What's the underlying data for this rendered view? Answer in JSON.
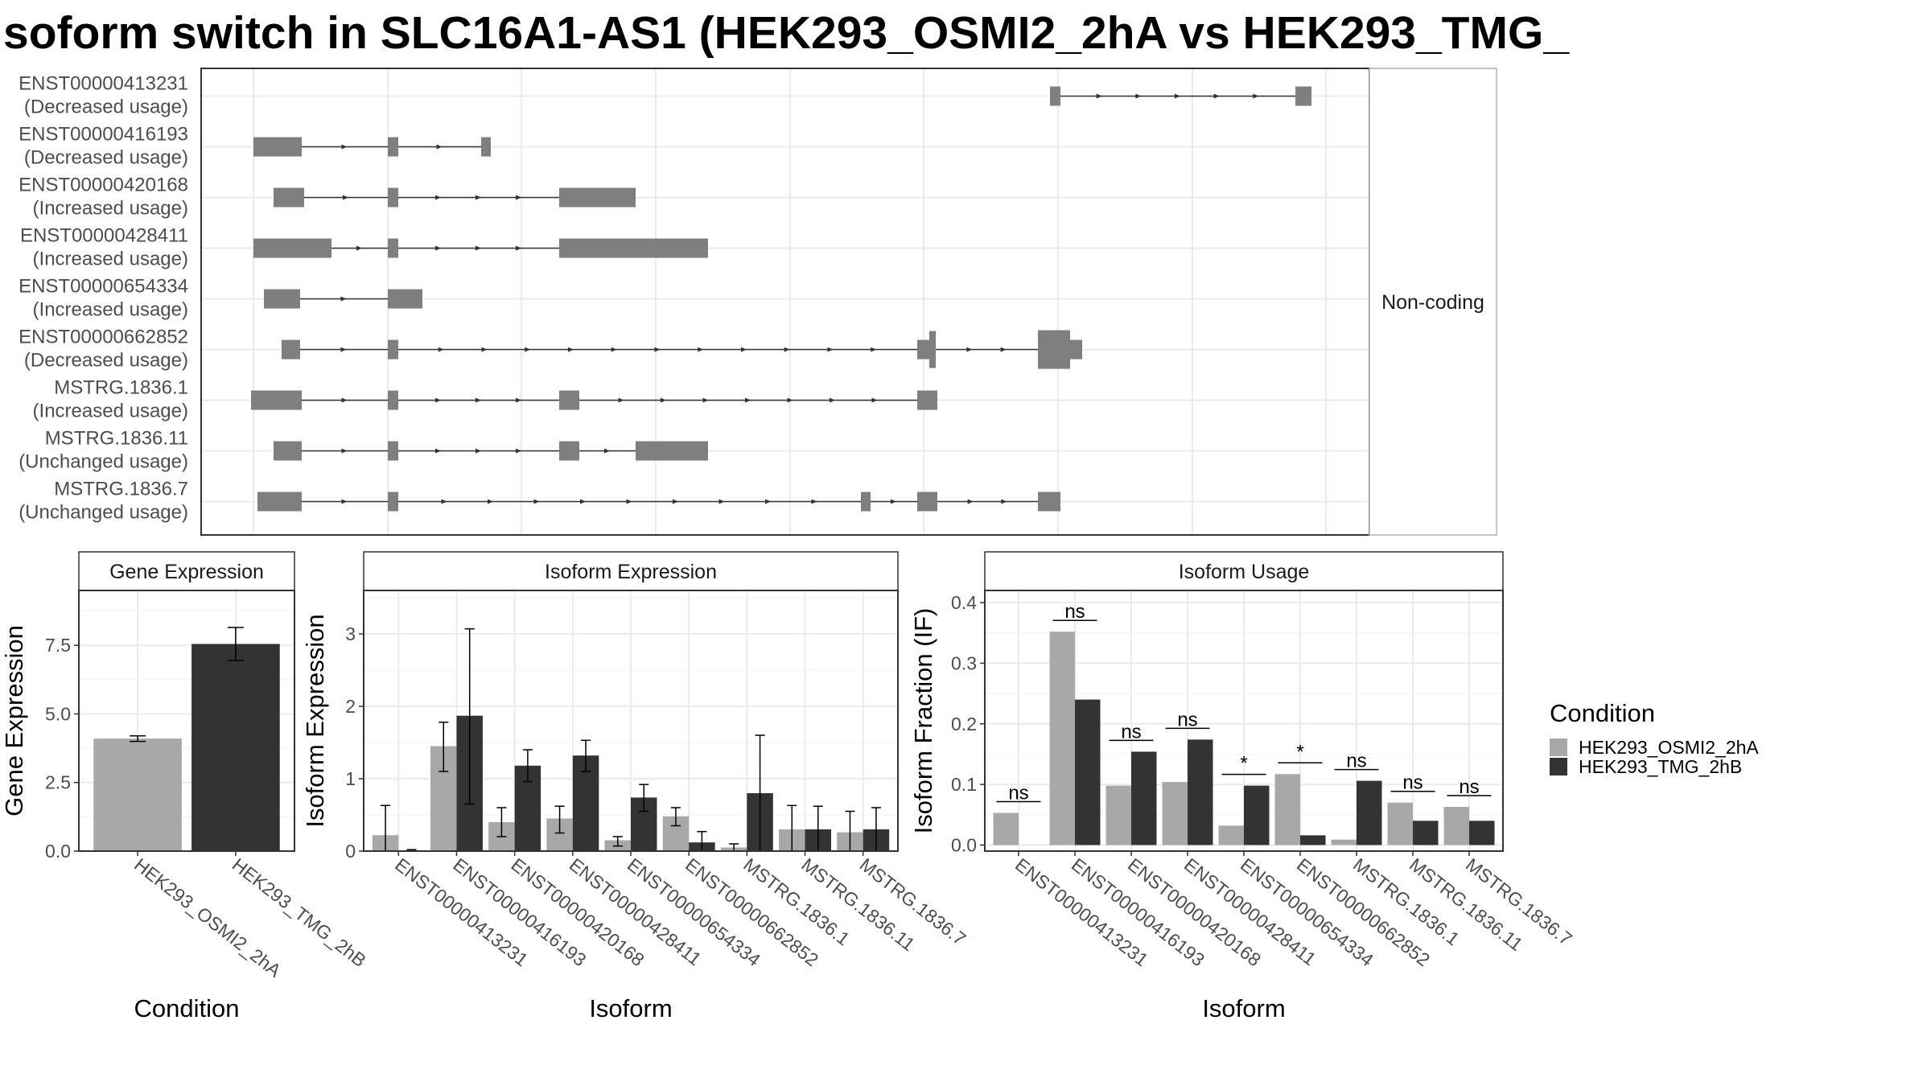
{
  "title": "soform switch in SLC16A1-AS1 (HEK293_OSMI2_2hA vs HEK293_TMG_",
  "colors": {
    "osmi": "#a8a8a8",
    "tmg": "#333333",
    "exon": "#7f7f7f"
  },
  "structure": {
    "facet_label": "Non-coding",
    "transcripts": [
      {
        "id": "ENST00000413231",
        "usage": "(Decreased usage)",
        "exons": [
          [
            1305,
            1318
          ],
          [
            1610,
            1630
          ]
        ]
      },
      {
        "id": "ENST00000416193",
        "usage": "(Decreased usage)",
        "exons": [
          [
            315,
            375
          ],
          [
            482,
            495
          ],
          [
            598,
            610
          ]
        ]
      },
      {
        "id": "ENST00000420168",
        "usage": "(Increased usage)",
        "exons": [
          [
            340,
            378
          ],
          [
            482,
            495
          ],
          [
            695,
            790
          ]
        ]
      },
      {
        "id": "ENST00000428411",
        "usage": "(Increased usage)",
        "exons": [
          [
            315,
            412
          ],
          [
            482,
            495
          ],
          [
            695,
            880
          ]
        ]
      },
      {
        "id": "ENST00000654334",
        "usage": "(Increased usage)",
        "exons": [
          [
            328,
            373
          ],
          [
            482,
            525
          ]
        ]
      },
      {
        "id": "ENST00000662852",
        "usage": "(Decreased usage)",
        "exons": [
          [
            350,
            373
          ],
          [
            482,
            495
          ],
          [
            1140,
            1155
          ],
          [
            1155,
            1163
          ],
          [
            1290,
            1330
          ],
          [
            1330,
            1345
          ]
        ]
      },
      {
        "id": "MSTRG.1836.1",
        "usage": "(Increased usage)",
        "exons": [
          [
            312,
            375
          ],
          [
            482,
            495
          ],
          [
            695,
            720
          ],
          [
            1140,
            1165
          ]
        ]
      },
      {
        "id": "MSTRG.1836.11",
        "usage": "(Unchanged usage)",
        "exons": [
          [
            340,
            375
          ],
          [
            482,
            495
          ],
          [
            695,
            720
          ],
          [
            790,
            880
          ]
        ]
      },
      {
        "id": "MSTRG.1836.7",
        "usage": "(Unchanged usage)",
        "exons": [
          [
            320,
            375
          ],
          [
            482,
            495
          ],
          [
            1070,
            1082
          ],
          [
            1140,
            1165
          ],
          [
            1290,
            1318
          ]
        ]
      }
    ]
  },
  "legend": {
    "title": "Condition",
    "items": [
      "HEK293_OSMI2_2hA",
      "HEK293_TMG_2hB"
    ]
  },
  "chart_data": [
    {
      "type": "bar",
      "panel_title": "Gene Expression",
      "xlabel": "Condition",
      "ylabel": "Gene Expression",
      "categories": [
        "HEK293_OSMI2_2hA",
        "HEK293_TMG_2hB"
      ],
      "values": [
        4.1,
        7.55
      ],
      "errors": [
        [
          4.0,
          4.2
        ],
        [
          6.95,
          8.15
        ]
      ],
      "ylim": [
        0,
        9.5
      ],
      "yticks": [
        "0.0",
        "2.5",
        "5.0",
        "7.5"
      ],
      "ytick_values": [
        0,
        2.5,
        5.0,
        7.5
      ]
    },
    {
      "type": "bar",
      "panel_title": "Isoform Expression",
      "xlabel": "Isoform",
      "ylabel": "Isoform Expression",
      "categories": [
        "ENST00000413231",
        "ENST00000416193",
        "ENST00000420168",
        "ENST00000428411",
        "ENST00000654334",
        "ENST00000662852",
        "MSTRG.1836.1",
        "MSTRG.1836.11",
        "MSTRG.1836.7"
      ],
      "series": [
        {
          "name": "HEK293_OSMI2_2hA",
          "values": [
            0.22,
            1.45,
            0.4,
            0.45,
            0.15,
            0.48,
            0.05,
            0.3,
            0.26
          ],
          "errors": [
            [
              0,
              0.63
            ],
            [
              1.1,
              1.78
            ],
            [
              0.2,
              0.6
            ],
            [
              0.25,
              0.62
            ],
            [
              0.07,
              0.2
            ],
            [
              0.35,
              0.6
            ],
            [
              0,
              0.1
            ],
            [
              0,
              0.63
            ],
            [
              0,
              0.55
            ]
          ]
        },
        {
          "name": "HEK293_TMG_2hB",
          "values": [
            0.01,
            1.87,
            1.18,
            1.32,
            0.74,
            0.12,
            0.8,
            0.3,
            0.3
          ],
          "errors": [
            [
              0,
              0.02
            ],
            [
              0.65,
              3.07
            ],
            [
              0.96,
              1.4
            ],
            [
              1.1,
              1.53
            ],
            [
              0.55,
              0.92
            ],
            [
              0,
              0.27
            ],
            [
              0,
              1.6
            ],
            [
              0,
              0.62
            ],
            [
              0,
              0.6
            ]
          ]
        }
      ],
      "ylim": [
        0,
        3.6
      ],
      "yticks": [
        "0",
        "1",
        "2",
        "3"
      ],
      "ytick_values": [
        0,
        1,
        2,
        3
      ]
    },
    {
      "type": "bar",
      "panel_title": "Isoform Usage",
      "xlabel": "Isoform",
      "ylabel": "Isoform Fraction (IF)",
      "categories": [
        "ENST00000413231",
        "ENST00000416193",
        "ENST00000420168",
        "ENST00000428411",
        "ENST00000654334",
        "ENST00000662852",
        "MSTRG.1836.1",
        "MSTRG.1836.11",
        "MSTRG.1836.7"
      ],
      "series": [
        {
          "name": "HEK293_OSMI2_2hA",
          "values": [
            0.053,
            0.352,
            0.098,
            0.104,
            0.032,
            0.117,
            0.009,
            0.07,
            0.063
          ]
        },
        {
          "name": "HEK293_TMG_2hB",
          "values": [
            0.0,
            0.24,
            0.154,
            0.174,
            0.098,
            0.016,
            0.106,
            0.04,
            0.04
          ]
        }
      ],
      "significance": [
        "ns",
        "ns",
        "ns",
        "ns",
        "*",
        "*",
        "ns",
        "ns",
        "ns"
      ],
      "ylim": [
        -0.01,
        0.42
      ],
      "yticks": [
        "0.0",
        "0.1",
        "0.2",
        "0.3",
        "0.4"
      ],
      "ytick_values": [
        0,
        0.1,
        0.2,
        0.3,
        0.4
      ]
    }
  ]
}
